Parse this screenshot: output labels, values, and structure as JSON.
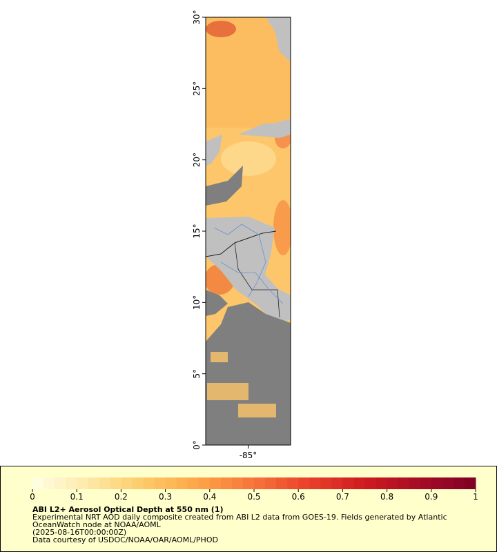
{
  "map": {
    "lat_ticks": [
      {
        "value": 0,
        "label": "0°"
      },
      {
        "value": 5,
        "label": "5°"
      },
      {
        "value": 10,
        "label": "10°"
      },
      {
        "value": 15,
        "label": "15°"
      },
      {
        "value": 20,
        "label": "20°"
      },
      {
        "value": 25,
        "label": "25°"
      },
      {
        "value": 30,
        "label": "30°"
      }
    ],
    "lat_range": [
      0,
      30
    ],
    "lon_ticks": [
      {
        "value": -85,
        "label": "-85°"
      }
    ],
    "lon_range": [
      -88,
      -82
    ],
    "colorbar": {
      "range": [
        0,
        1
      ],
      "ticks": [
        0,
        0.1,
        0.2,
        0.3,
        0.4,
        0.5,
        0.6,
        0.7,
        0.8,
        0.9,
        1
      ],
      "colormap": [
        "#ffffe6",
        "#fee9a8",
        "#fdcb68",
        "#fca448",
        "#f7733a",
        "#e8402b",
        "#cf1a20",
        "#a50c26",
        "#800026"
      ]
    },
    "legend": {
      "title": "ABI L2+ Aerosol Optical Depth at 550 nm (1)",
      "lines": [
        "Experimental NRT AOD daily composite created from ABI L2 data from GOES-19. Fields generated by Atlantic",
        "OceanWatch node at NOAA/AOML",
        "(2025-08-16T00:00:00Z)",
        "Data courtesy of USDOC/NOAA/OAR/AOML/PHOD"
      ]
    }
  }
}
